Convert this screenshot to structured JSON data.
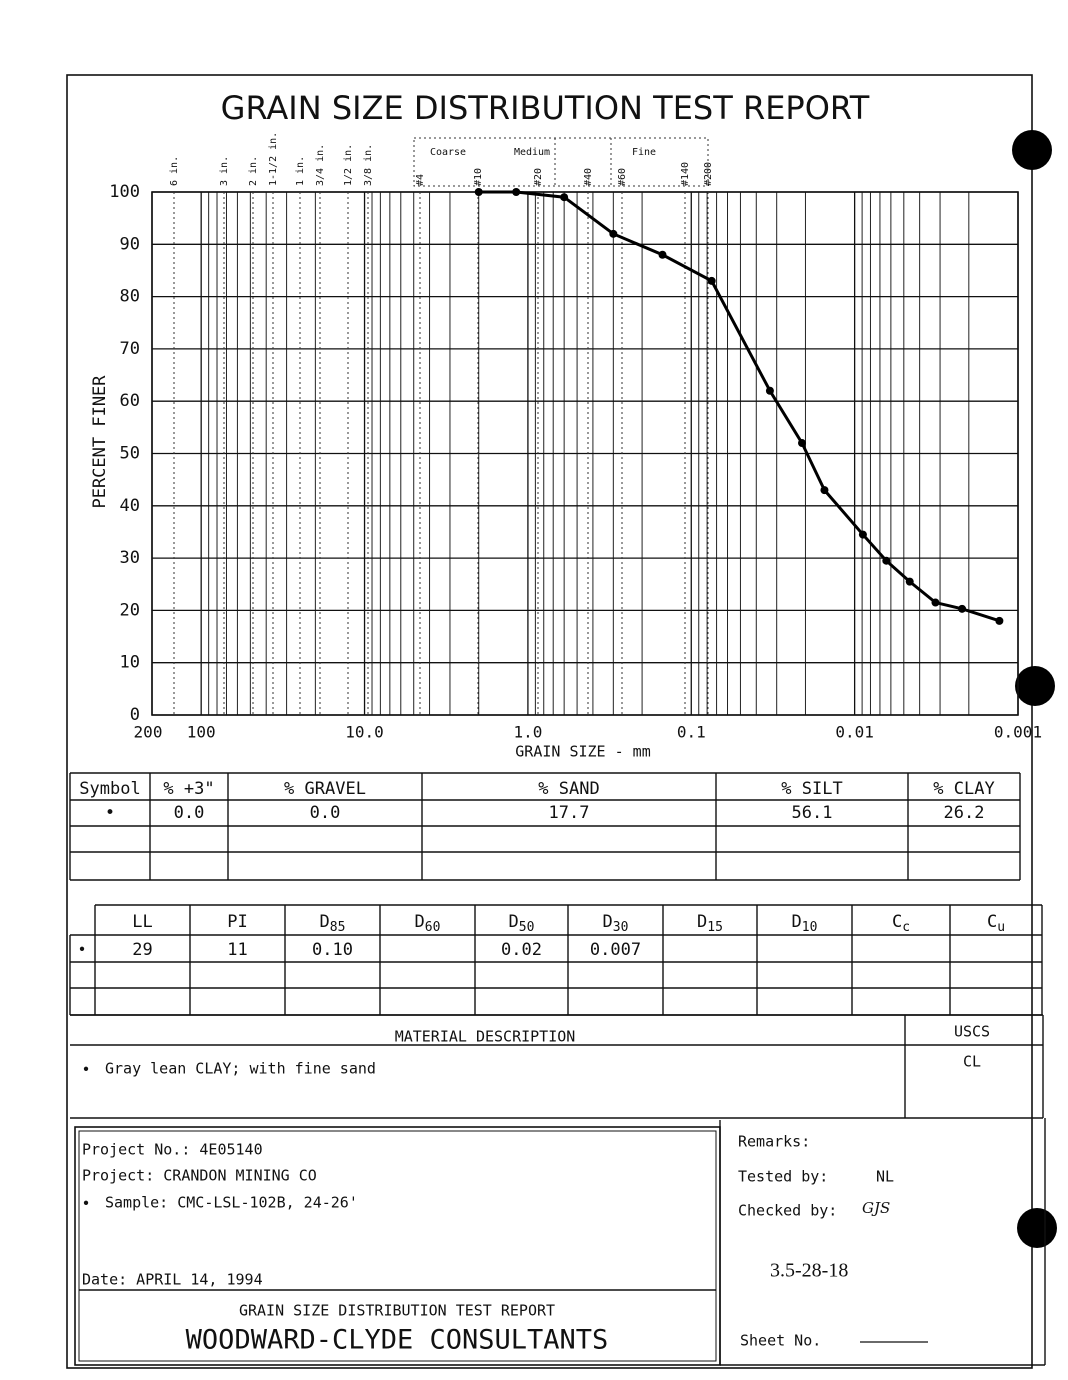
{
  "chart_data": {
    "type": "line",
    "title": "GRAIN SIZE DISTRIBUTION TEST REPORT",
    "x_label": "GRAIN SIZE - mm",
    "y_label": "PERCENT FINER",
    "x_scale": "log",
    "grid": true,
    "xlim": [
      200,
      0.001
    ],
    "ylim": [
      0,
      100
    ],
    "xticks": [
      200,
      100,
      {
        "value": 10,
        "label": "10.0"
      },
      {
        "value": 1,
        "label": "1.0"
      },
      0.1,
      0.01,
      0.001
    ],
    "yticks": [
      0,
      10,
      20,
      30,
      40,
      50,
      60,
      70,
      80,
      90,
      100
    ],
    "sieves": [
      "6 in.",
      "3 in.",
      "2 in.",
      "1-1/2 in.",
      "1 in.",
      "3/4 in.",
      "1/2 in.",
      "3/8 in.",
      "#4",
      "#10",
      "#20",
      "#40",
      "#60",
      "#140",
      "#200"
    ],
    "sand_ranges": [
      "Coarse",
      "Medium",
      "Fine"
    ],
    "series": [
      {
        "color": "#000000",
        "x": [
          2.0,
          1.18,
          0.6,
          0.3,
          0.15,
          0.075,
          0.033,
          0.021,
          0.0153,
          0.0089,
          0.0064,
          0.0046,
          0.0032,
          0.0022,
          0.0013
        ],
        "values": [
          100,
          100,
          99,
          92,
          88,
          83,
          62,
          52,
          43,
          34.5,
          29.5,
          25.5,
          21.5,
          20.3,
          18
        ]
      }
    ]
  },
  "summary_table": {
    "headers": [
      "Symbol",
      "% +3\"",
      "% GRAVEL",
      "% SAND",
      "% SILT",
      "% CLAY"
    ],
    "rows": [
      [
        "•",
        "0.0",
        "0.0",
        "17.7",
        "56.1",
        "26.2"
      ]
    ]
  },
  "properties_table": {
    "headers": [
      {
        "main": "LL"
      },
      {
        "main": "PI"
      },
      {
        "main": "D",
        "sub": "85"
      },
      {
        "main": "D",
        "sub": "60"
      },
      {
        "main": "D",
        "sub": "50"
      },
      {
        "main": "D",
        "sub": "30"
      },
      {
        "main": "D",
        "sub": "15"
      },
      {
        "main": "D",
        "sub": "10"
      },
      {
        "main": "C",
        "sub": "c"
      },
      {
        "main": "C",
        "sub": "u"
      }
    ],
    "symbol": "•",
    "rows": [
      [
        "29",
        "11",
        "0.10",
        null,
        "0.02",
        "0.007",
        null,
        null,
        null,
        null
      ]
    ]
  },
  "material": {
    "header": "MATERIAL DESCRIPTION",
    "uscs_header": "USCS",
    "symbol": "•",
    "description": "Gray lean CLAY; with fine sand",
    "uscs": "CL"
  },
  "project": {
    "number": "Project No.: 4E05140",
    "name": "Project: CRANDON MINING CO",
    "symbol": "•",
    "sample": "Sample: CMC-LSL-102B, 24-26'",
    "date": "Date: APRIL 14, 1994",
    "report_title": "GRAIN SIZE DISTRIBUTION TEST REPORT",
    "company": "WOODWARD-CLYDE CONSULTANTS"
  },
  "remarks": {
    "remarks": "Remarks:",
    "tested_by": "Tested by:",
    "tester": "NL",
    "checked_by": "Checked by:",
    "checker": "GJS",
    "code": "3.5-28-18",
    "sheet": "Sheet No."
  }
}
